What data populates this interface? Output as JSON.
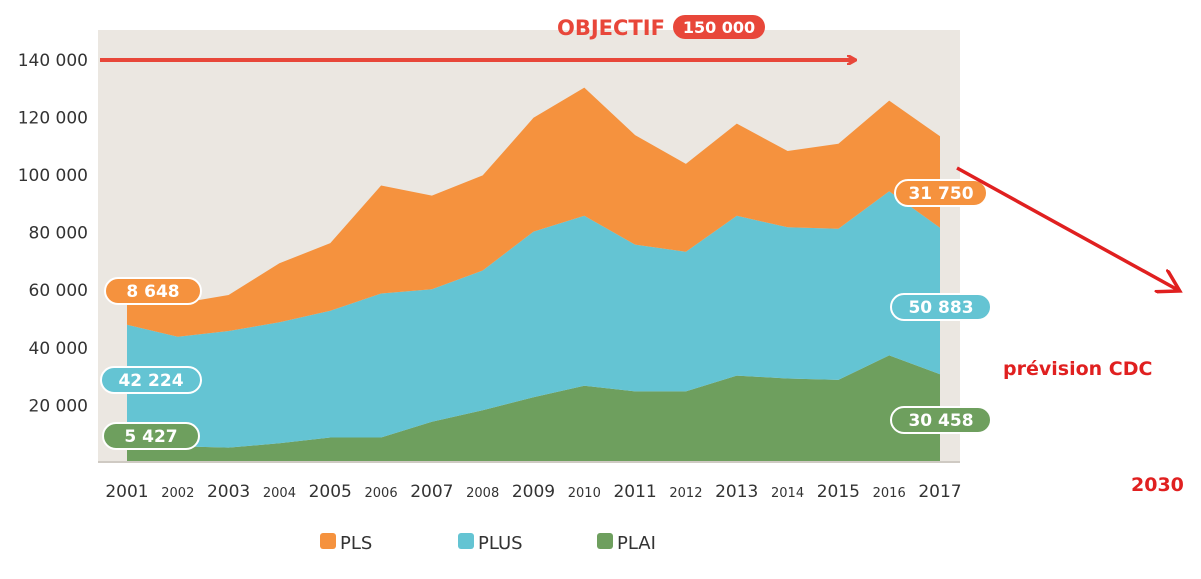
{
  "chart_data": {
    "type": "area",
    "stacked": true,
    "x": [
      "2001",
      "2002",
      "2003",
      "2004",
      "2005",
      "2006",
      "2007",
      "2008",
      "2009",
      "2010",
      "2011",
      "2012",
      "2013",
      "2014",
      "2015",
      "2016",
      "2017"
    ],
    "series": [
      {
        "name": "PLAI",
        "color": "#6e9f5e",
        "values": [
          5427,
          5500,
          5000,
          6500,
          8500,
          8500,
          14000,
          18000,
          22500,
          26500,
          24500,
          24500,
          30000,
          29000,
          28500,
          37000,
          30458
        ]
      },
      {
        "name": "PLUS",
        "color": "#64c4d3",
        "values": [
          42224,
          38000,
          40500,
          42000,
          44000,
          50000,
          46000,
          48500,
          57500,
          59000,
          51000,
          48500,
          55500,
          52500,
          52500,
          57000,
          50883
        ]
      },
      {
        "name": "PLS",
        "color": "#f5923e",
        "values": [
          8648,
          11500,
          12500,
          20500,
          23500,
          37500,
          32500,
          33000,
          39500,
          44500,
          38000,
          30500,
          32000,
          26500,
          29500,
          31500,
          31750
        ]
      }
    ],
    "ylim": [
      0,
      150000
    ],
    "y_ticks": [
      "20 000",
      "40 000",
      "60 000",
      "80 000",
      "100 000",
      "120 000",
      "140 000"
    ],
    "y_tick_values": [
      20000,
      40000,
      60000,
      80000,
      100000,
      120000,
      140000
    ],
    "grid": false,
    "legend": [
      "PLS",
      "PLUS",
      "PLAI"
    ],
    "legend_position": "bottom",
    "objective": {
      "label": "OBJECTIF",
      "value_label": "150 000",
      "color": "#e8473a"
    },
    "labels_2001": {
      "PLS": "8 648",
      "PLUS": "42 224",
      "PLAI": "5 427"
    },
    "labels_2017": {
      "PLS": "31 750",
      "PLUS": "50 883",
      "PLAI": "30 458"
    },
    "forecast": {
      "label": "prévision CDC",
      "year": "2030",
      "color": "#e02020"
    }
  }
}
